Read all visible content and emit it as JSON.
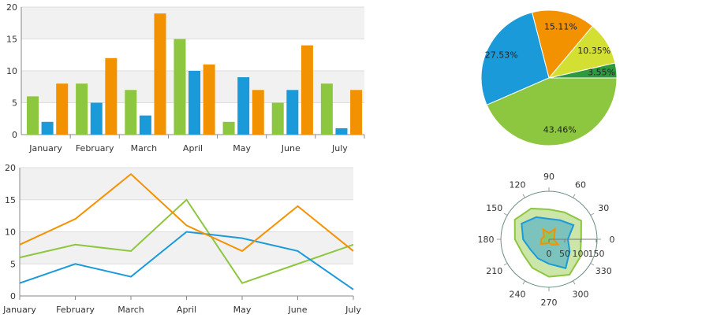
{
  "colors": {
    "green": "#8dc63f",
    "blue": "#1b9ad9",
    "orange": "#f39200",
    "yellowgreen": "#d4df33",
    "darkgreen": "#2e9a3e"
  },
  "chart_data": [
    {
      "type": "bar",
      "categories": [
        "January",
        "February",
        "March",
        "April",
        "May",
        "June",
        "July"
      ],
      "series": [
        {
          "values": [
            6,
            8,
            7,
            15,
            2,
            5,
            8
          ],
          "color": "#8dc63f"
        },
        {
          "values": [
            2,
            5,
            3,
            10,
            9,
            7,
            1
          ],
          "color": "#1b9ad9"
        },
        {
          "values": [
            8,
            12,
            19,
            11,
            7,
            14,
            7
          ],
          "color": "#f39200"
        }
      ],
      "ylim": [
        0,
        20
      ],
      "yticks": [
        "0",
        "5",
        "10",
        "15",
        "20"
      ],
      "grid": true
    },
    {
      "type": "line",
      "categories": [
        "January",
        "February",
        "March",
        "April",
        "May",
        "June",
        "July"
      ],
      "series": [
        {
          "values": [
            6,
            8,
            7,
            15,
            2,
            5,
            8
          ],
          "color": "#8dc63f"
        },
        {
          "values": [
            2,
            5,
            3,
            10,
            9,
            7,
            1
          ],
          "color": "#1b9ad9"
        },
        {
          "values": [
            8,
            12,
            19,
            11,
            7,
            14,
            7
          ],
          "color": "#f39200"
        }
      ],
      "ylim": [
        0,
        20
      ],
      "yticks": [
        "0",
        "5",
        "10",
        "15",
        "20"
      ],
      "grid": true
    },
    {
      "type": "pie",
      "slices": [
        {
          "label": "3.55%",
          "value": 3.55,
          "color": "#2e9a3e"
        },
        {
          "label": "10.35%",
          "value": 10.35,
          "color": "#d4df33"
        },
        {
          "label": "15.11%",
          "value": 15.11,
          "color": "#f39200"
        },
        {
          "label": "27.53%",
          "value": 27.53,
          "color": "#1b9ad9"
        },
        {
          "label": "43.46%",
          "value": 43.46,
          "color": "#8dc63f"
        }
      ]
    },
    {
      "type": "polar-area",
      "angles": [
        0,
        30,
        60,
        90,
        120,
        150,
        180,
        210,
        240,
        270,
        300,
        330
      ],
      "angle_labels": [
        "0",
        "30",
        "60",
        "90",
        "120",
        "150",
        "180",
        "210",
        "240",
        "270",
        "300",
        "330"
      ],
      "radial_ticks": [
        "0",
        "50",
        "100",
        "150"
      ],
      "rlim": [
        0,
        150
      ],
      "series": [
        {
          "values": [
            102,
            118,
            99,
            95,
            113,
            125,
            108,
            95,
            105,
            119,
            130,
            114
          ],
          "color": "#8dc63f"
        },
        {
          "values": [
            60,
            90,
            70,
            65,
            81,
            100,
            82,
            67,
            70,
            78,
            106,
            76
          ],
          "color": "#1b9ad9"
        },
        {
          "values": [
            15,
            20,
            38,
            20,
            36,
            18,
            25,
            30,
            15,
            12,
            20,
            33
          ],
          "color": "#f39200"
        }
      ]
    }
  ]
}
